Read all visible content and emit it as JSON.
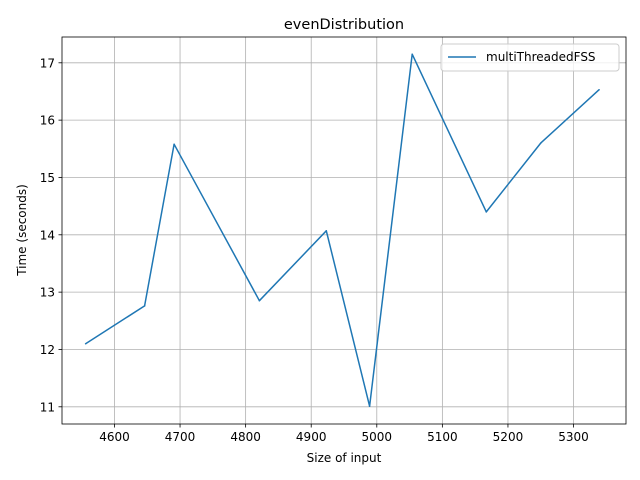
{
  "chart_data": {
    "type": "line",
    "title": "evenDistribution",
    "xlabel": "Size of input",
    "ylabel": "Time (seconds)",
    "xlim": [
      4520,
      5380
    ],
    "ylim": [
      10.7,
      17.45
    ],
    "xticks": [
      4600,
      4700,
      4800,
      4900,
      5000,
      5100,
      5200,
      5300
    ],
    "yticks": [
      11,
      12,
      13,
      14,
      15,
      16,
      17
    ],
    "grid": true,
    "legend_position": "top-right",
    "series": [
      {
        "name": "multiThreadedFSS",
        "color": "#1f77b4",
        "x": [
          4556,
          4646,
          4691,
          4821,
          4923,
          4989,
          5054,
          5167,
          5250,
          5339
        ],
        "y": [
          12.1,
          12.76,
          15.58,
          12.85,
          14.07,
          11.01,
          17.15,
          14.4,
          15.6,
          16.53
        ]
      }
    ]
  }
}
